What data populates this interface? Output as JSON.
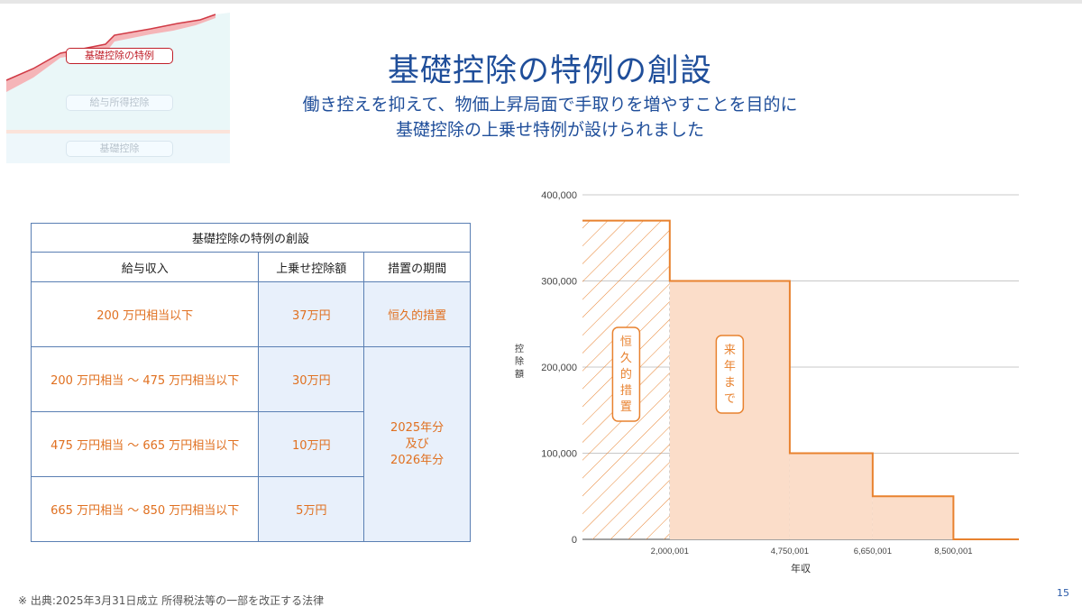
{
  "thumbnail": {
    "label_main": "基礎控除の特例",
    "label_income": "給与所得控除",
    "label_basic": "基礎控除"
  },
  "title": "基礎控除の特例の創設",
  "subtitle_line1": "働き控えを抑えて、物価上昇局面で手取りを増やすことを目的に",
  "subtitle_line2": "基礎控除の上乗せ特例が設けられました",
  "table": {
    "caption": "基礎控除の特例の創設",
    "headers": [
      "給与収入",
      "上乗せ控除額",
      "措置の期間"
    ],
    "rows": [
      {
        "income": "200 万円相当以下",
        "amount": "37万円",
        "period": "恒久的措置"
      },
      {
        "income": "200 万円相当 〜 475 万円相当以下",
        "amount": "30万円"
      },
      {
        "income": "475 万円相当 〜 665 万円相当以下",
        "amount": "10万円"
      },
      {
        "income": "665 万円相当 〜 850 万円相当以下",
        "amount": "5万円"
      }
    ],
    "period_merged": [
      "2025年分",
      "及び",
      "2026年分"
    ]
  },
  "colors": {
    "accent_orange": "#e8822f",
    "fill_orange": "#fbddc9",
    "title_blue": "#1f4e9a",
    "table_blue": "#e8f0fb"
  },
  "chart_data": {
    "type": "area",
    "step": true,
    "xlabel": "年収",
    "ylabel": "控除額",
    "ylim": [
      0,
      400000
    ],
    "y_ticks": [
      "0",
      "100,000",
      "200,000",
      "300,000",
      "400,000"
    ],
    "y_tick_values": [
      0,
      100000,
      200000,
      300000,
      400000
    ],
    "x_ticks": [
      "2,000,001",
      "4,750,001",
      "6,650,001",
      "8,500,001"
    ],
    "x_tick_values": [
      2000001,
      4750001,
      6650001,
      8500001
    ],
    "segments": [
      {
        "x_from": 0,
        "x_to": 2000001,
        "value": 370000,
        "style": "hatched"
      },
      {
        "x_from": 2000001,
        "x_to": 4750001,
        "value": 300000,
        "style": "filled"
      },
      {
        "x_from": 4750001,
        "x_to": 6650001,
        "value": 100000,
        "style": "filled"
      },
      {
        "x_from": 6650001,
        "x_to": 8500001,
        "value": 50000,
        "style": "filled"
      },
      {
        "x_from": 8500001,
        "x_to": 10000000,
        "value": 0,
        "style": "filled"
      }
    ],
    "annotations": [
      {
        "text": "恒久的措置",
        "segment": 0
      },
      {
        "text": "来年まで",
        "segment": 1
      }
    ],
    "grid": true
  },
  "footnote": "※ 出典:2025年3月31日成立 所得税法等の一部を改正する法律",
  "page_number": "15"
}
